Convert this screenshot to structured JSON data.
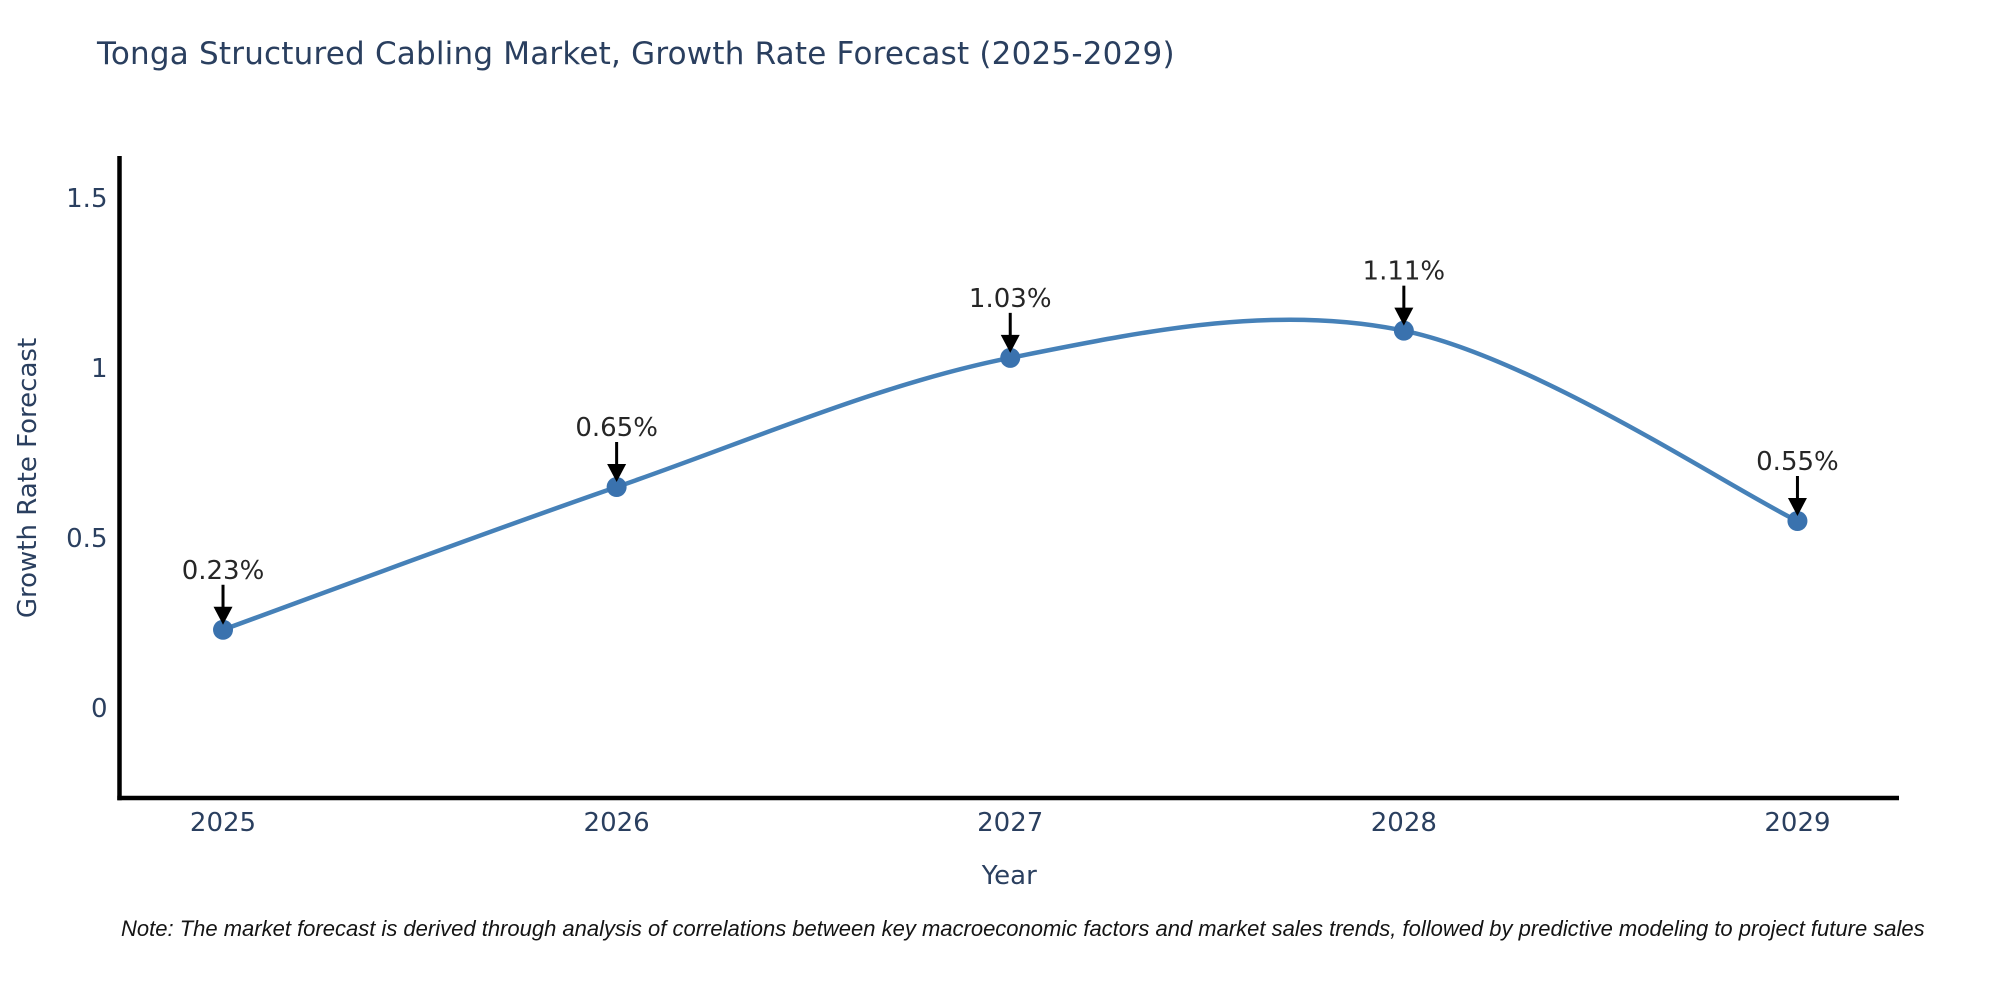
{
  "chart_data": {
    "type": "line",
    "title": "Tonga Structured Cabling Market, Growth Rate Forecast (2025-2029)",
    "xlabel": "Year",
    "ylabel": "Growth Rate Forecast",
    "x": [
      2025,
      2026,
      2027,
      2028,
      2029
    ],
    "series": [
      {
        "name": "Growth Rate Forecast",
        "values": [
          0.23,
          0.65,
          1.03,
          1.11,
          0.55
        ]
      }
    ],
    "point_labels": [
      "0.23%",
      "0.65%",
      "1.03%",
      "1.11%",
      "0.55%"
    ],
    "xtick_labels": [
      "2025",
      "2026",
      "2027",
      "2028",
      "2029"
    ],
    "ytick_values": [
      0,
      0.5,
      1,
      1.5
    ],
    "ytick_labels": [
      "0",
      "0.5",
      "1",
      "1.5"
    ],
    "xlim": [
      2024.737,
      2029.258
    ],
    "ylim": [
      -0.265,
      1.618
    ],
    "line_shape": "spline",
    "grid": false,
    "legend": false,
    "annotation_arrows": true,
    "colors": {
      "line": "#4681b8",
      "marker": "#3a72ae",
      "axis": "#000000",
      "arrow": "#000000",
      "tick_text": "#2a3f5f",
      "axis_title_text": "#2a3f5f",
      "annotation_text": "#262626",
      "title_text": "#2a3f5f",
      "background": "#ffffff"
    }
  },
  "note": {
    "text": "Note: The market forecast is derived through analysis of correlations between key macroeconomic factors and market sales trends, followed by predictive modeling to project future sales"
  }
}
